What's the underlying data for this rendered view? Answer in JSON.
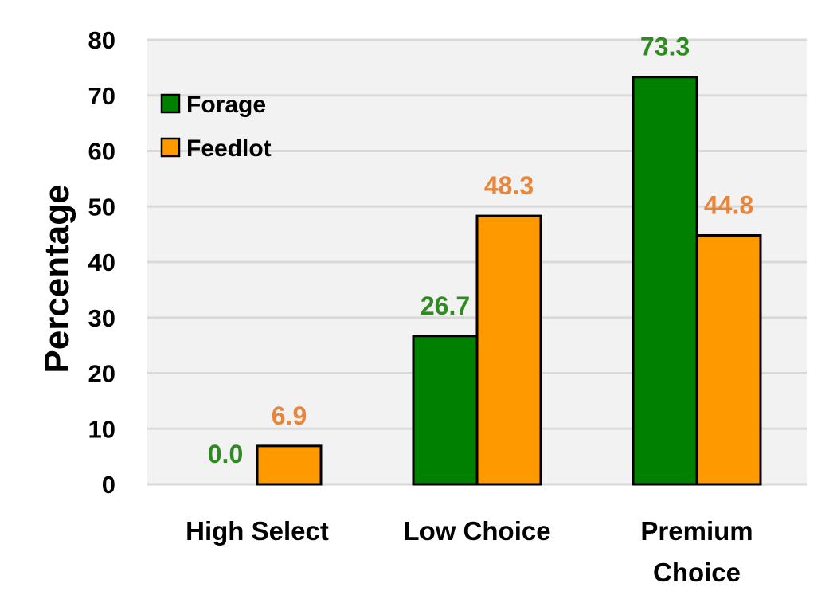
{
  "chart_data": {
    "type": "bar",
    "title": "",
    "xlabel": "",
    "ylabel": "Percentage",
    "ylim": [
      0,
      80
    ],
    "yticks": [
      0,
      10,
      20,
      30,
      40,
      50,
      60,
      70,
      80
    ],
    "grid": true,
    "legend_position": "top-left",
    "categories": [
      [
        "High Select"
      ],
      [
        "Low Choice"
      ],
      [
        "Premium",
        "Choice"
      ]
    ],
    "series": [
      {
        "name": "Forage",
        "color": "#008000",
        "label_color": "#2e8b1f",
        "values": [
          0.0,
          26.7,
          73.3
        ],
        "labels": [
          "0.0",
          "26.7",
          "73.3"
        ]
      },
      {
        "name": "Feedlot",
        "color": "#ff9900",
        "label_color": "#e8853c",
        "values": [
          6.9,
          48.3,
          44.8
        ],
        "labels": [
          "6.9",
          "48.3",
          "44.8"
        ]
      }
    ],
    "plot_background": "#f2f2f2",
    "gridline_color": "#d9d9d9"
  }
}
